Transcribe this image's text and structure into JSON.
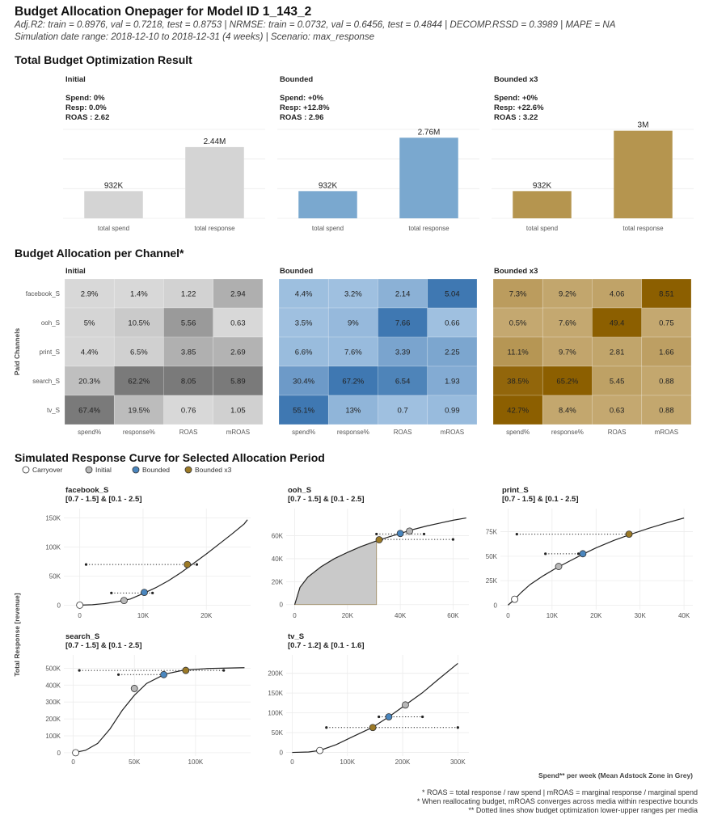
{
  "header": {
    "title": "Budget Allocation Onepager for Model ID 1_143_2",
    "subtitle_lines": [
      "Adj.R2: train = 0.8976, val = 0.7218, test = 0.8753 | NRMSE: train = 0.0732, val = 0.6456, test = 0.4844 | DECOMP.RSSD = 0.3989 | MAPE = NA",
      "Simulation date range: 2018-12-10 to 2018-12-31 (4 weeks) | Scenario: max_response"
    ]
  },
  "colors": {
    "initial": "#d4d4d4",
    "bounded": "#7aa8cf",
    "bounded_x3": "#b5954f",
    "carryover": "#ffffff"
  },
  "sections": {
    "total": "Total Budget Optimization Result",
    "allocation": "Budget Allocation per Channel*",
    "curves": "Simulated Response Curve for Selected Allocation Period"
  },
  "chart_data": [
    {
      "id": "total_budget",
      "type": "bar",
      "title": "Total Budget Optimization Result",
      "categories": [
        "total spend",
        "total response"
      ],
      "panels": [
        {
          "name": "Initial",
          "stats": [
            "Spend: 0%",
            "Resp: 0.0%",
            "ROAS : 2.62"
          ],
          "values": [
            932000,
            2440000
          ],
          "labels": [
            "932K",
            "2.44M"
          ],
          "color": "#d4d4d4"
        },
        {
          "name": "Bounded",
          "stats": [
            "Spend: +0%",
            "Resp: +12.8%",
            "ROAS : 2.96"
          ],
          "values": [
            932000,
            2760000
          ],
          "labels": [
            "932K",
            "2.76M"
          ],
          "color": "#7aa8cf"
        },
        {
          "name": "Bounded x3",
          "stats": [
            "Spend: +0%",
            "Resp: +22.6%",
            "ROAS : 3.22"
          ],
          "values": [
            932000,
            3000000
          ],
          "labels": [
            "932K",
            "3M"
          ],
          "color": "#b5954f"
        }
      ],
      "ylim": [
        0,
        3600000
      ]
    },
    {
      "id": "allocation",
      "type": "heatmap",
      "title": "Budget Allocation per Channel*",
      "ylabel": "Paid Channels",
      "rows": [
        "facebook_S",
        "ooh_S",
        "print_S",
        "search_S",
        "tv_S"
      ],
      "columns": [
        "spend%",
        "response%",
        "ROAS",
        "mROAS"
      ],
      "panels": [
        {
          "name": "Initial",
          "scale": [
            "#d8d8d8",
            "#7a7a7a"
          ],
          "cells": [
            [
              "2.9%",
              "1.4%",
              "1.22",
              "2.94"
            ],
            [
              "5%",
              "10.5%",
              "5.56",
              "0.63"
            ],
            [
              "4.4%",
              "6.5%",
              "3.85",
              "2.69"
            ],
            [
              "20.3%",
              "62.2%",
              "8.05",
              "5.89"
            ],
            [
              "67.4%",
              "19.5%",
              "0.76",
              "1.05"
            ]
          ],
          "values": [
            [
              2.9,
              1.4,
              1.22,
              2.94
            ],
            [
              5,
              10.5,
              5.56,
              0.63
            ],
            [
              4.4,
              6.5,
              3.85,
              2.69
            ],
            [
              20.3,
              62.2,
              8.05,
              5.89
            ],
            [
              67.4,
              19.5,
              0.76,
              1.05
            ]
          ]
        },
        {
          "name": "Bounded",
          "scale": [
            "#9fc0e0",
            "#3f78b2"
          ],
          "cells": [
            [
              "4.4%",
              "3.2%",
              "2.14",
              "5.04"
            ],
            [
              "3.5%",
              "9%",
              "7.66",
              "0.66"
            ],
            [
              "6.6%",
              "7.6%",
              "3.39",
              "2.25"
            ],
            [
              "30.4%",
              "67.2%",
              "6.54",
              "1.93"
            ],
            [
              "55.1%",
              "13%",
              "0.7",
              "0.99"
            ]
          ],
          "values": [
            [
              4.4,
              3.2,
              2.14,
              5.04
            ],
            [
              3.5,
              9,
              7.66,
              0.66
            ],
            [
              6.6,
              7.6,
              3.39,
              2.25
            ],
            [
              30.4,
              67.2,
              6.54,
              1.93
            ],
            [
              55.1,
              13,
              0.7,
              0.99
            ]
          ]
        },
        {
          "name": "Bounded x3",
          "scale": [
            "#c4a870",
            "#8c5f00"
          ],
          "cells": [
            [
              "7.3%",
              "9.2%",
              "4.06",
              "8.51"
            ],
            [
              "0.5%",
              "7.6%",
              "49.4",
              "0.75"
            ],
            [
              "11.1%",
              "9.7%",
              "2.81",
              "1.66"
            ],
            [
              "38.5%",
              "65.2%",
              "5.45",
              "0.88"
            ],
            [
              "42.7%",
              "8.4%",
              "0.63",
              "0.88"
            ]
          ],
          "values": [
            [
              7.3,
              9.2,
              4.06,
              8.51
            ],
            [
              0.5,
              7.6,
              49.4,
              0.75
            ],
            [
              11.1,
              9.7,
              2.81,
              1.66
            ],
            [
              38.5,
              65.2,
              5.45,
              0.88
            ],
            [
              42.7,
              8.4,
              0.63,
              0.88
            ]
          ]
        }
      ]
    },
    {
      "id": "response_curves",
      "type": "line",
      "title": "Simulated Response Curve for Selected Allocation Period",
      "ylabel": "Total Response [revenue]",
      "xlabel": "Spend** per week (Mean Adstock Zone in Grey)",
      "legend": [
        "Carryover",
        "Initial",
        "Bounded",
        "Bounded x3"
      ],
      "legend_position": "top-left",
      "panels": [
        {
          "name": "facebook_S",
          "range_label": "[0.7 - 1.5] & [0.1 - 2.5]",
          "xlim": [
            -2000,
            27000
          ],
          "ylim": [
            -5000,
            155000
          ],
          "xticks": [
            0,
            10000,
            20000
          ],
          "xticklabels": [
            "0",
            "10K",
            "20K"
          ],
          "yticks": [
            0,
            50000,
            100000,
            150000
          ],
          "yticklabels": [
            "0",
            "50K",
            "100K",
            "150K"
          ],
          "curve": [
            [
              0,
              0
            ],
            [
              2000,
              700
            ],
            [
              4000,
              2800
            ],
            [
              6000,
              6200
            ],
            [
              8000,
              10500
            ],
            [
              10000,
              20000
            ],
            [
              12000,
              30000
            ],
            [
              14000,
              42000
            ],
            [
              16000,
              56000
            ],
            [
              18000,
              72000
            ],
            [
              20000,
              88000
            ],
            [
              22000,
              105000
            ],
            [
              24000,
              122000
            ],
            [
              26000,
              140000
            ],
            [
              26500,
              147000
            ]
          ],
          "points": {
            "Carryover": [
              0,
              0
            ],
            "Initial": [
              7000,
              8000
            ],
            "Bounded": [
              10200,
              22000
            ],
            "Bounded x3": [
              17000,
              70000
            ]
          },
          "ranges": [
            {
              "from": [
                5000,
                21000
              ],
              "to": [
                11500,
                21000
              ]
            },
            {
              "from": [
                1000,
                70000
              ],
              "to": [
                18500,
                70000
              ]
            }
          ],
          "adstock": null
        },
        {
          "name": "ooh_S",
          "range_label": "[0.7 - 1.5] & [0.1 - 2.5]",
          "xlim": [
            -2000,
            66000
          ],
          "ylim": [
            -3000,
            78000
          ],
          "xticks": [
            0,
            20000,
            40000,
            60000
          ],
          "xticklabels": [
            "0",
            "20K",
            "40K",
            "60K"
          ],
          "yticks": [
            0,
            20000,
            40000,
            60000
          ],
          "yticklabels": [
            "0",
            "20K",
            "40K",
            "60K"
          ],
          "curve": [
            [
              0,
              0
            ],
            [
              2000,
              15000
            ],
            [
              5000,
              24000
            ],
            [
              10000,
              33000
            ],
            [
              15000,
              40000
            ],
            [
              20000,
              45500
            ],
            [
              25000,
              50500
            ],
            [
              31000,
              55500
            ],
            [
              35000,
              58500
            ],
            [
              40000,
              62000
            ],
            [
              45000,
              65500
            ],
            [
              50000,
              68500
            ],
            [
              55000,
              71000
            ],
            [
              60000,
              73500
            ],
            [
              65000,
              75500
            ]
          ],
          "points": {
            "Bounded x3": [
              32000,
              56500
            ],
            "Bounded": [
              40000,
              62000
            ],
            "Initial": [
              43500,
              64000
            ]
          },
          "ranges": [
            {
              "from": [
                33000,
                56800
              ],
              "to": [
                60000,
                56800
              ]
            },
            {
              "from": [
                31000,
                61500
              ],
              "to": [
                49000,
                61500
              ]
            }
          ],
          "adstock": [
            0,
            31000
          ]
        },
        {
          "name": "print_S",
          "range_label": "[0.7 - 1.5] & [0.1 - 2.5]",
          "xlim": [
            -1000,
            42000
          ],
          "ylim": [
            -3000,
            92000
          ],
          "xticks": [
            0,
            10000,
            20000,
            30000,
            40000
          ],
          "xticklabels": [
            "0",
            "10K",
            "20K",
            "30K",
            "40K"
          ],
          "yticks": [
            0,
            25000,
            50000,
            75000
          ],
          "yticklabels": [
            "0",
            "25K",
            "50K",
            "75K"
          ],
          "curve": [
            [
              0,
              0
            ],
            [
              1500,
              6000
            ],
            [
              3000,
              13000
            ],
            [
              5000,
              21000
            ],
            [
              8000,
              30000
            ],
            [
              11000,
              38000
            ],
            [
              14000,
              45000
            ],
            [
              17000,
              52000
            ],
            [
              20000,
              58500
            ],
            [
              24000,
              66000
            ],
            [
              28000,
              72500
            ],
            [
              32000,
              78500
            ],
            [
              36000,
              84000
            ],
            [
              40000,
              89000
            ]
          ],
          "points": {
            "Carryover": [
              1500,
              6000
            ],
            "Initial": [
              11500,
              39500
            ],
            "Bounded": [
              17000,
              52500
            ],
            "Bounded x3": [
              27500,
              72500
            ]
          },
          "ranges": [
            {
              "from": [
                8500,
                52500
              ],
              "to": [
                16000,
                52500
              ]
            },
            {
              "from": [
                2000,
                72500
              ],
              "to": [
                27000,
                72500
              ]
            }
          ],
          "adstock": null
        },
        {
          "name": "search_S",
          "range_label": "[0.7 - 1.5] & [0.1 - 2.5]",
          "xlim": [
            -5000,
            145000
          ],
          "ylim": [
            -10000,
            540000
          ],
          "xticks": [
            0,
            50000,
            100000
          ],
          "xticklabels": [
            "0",
            "50K",
            "100K"
          ],
          "yticks": [
            0,
            100000,
            200000,
            300000,
            400000,
            500000
          ],
          "yticklabels": [
            "0",
            "100K",
            "200K",
            "300K",
            "400K",
            "500K"
          ],
          "curve": [
            [
              0,
              0
            ],
            [
              10000,
              14000
            ],
            [
              20000,
              55000
            ],
            [
              30000,
              140000
            ],
            [
              40000,
              250000
            ],
            [
              50000,
              340000
            ],
            [
              60000,
              410000
            ],
            [
              75000,
              465000
            ],
            [
              90000,
              488000
            ],
            [
              110000,
              498000
            ],
            [
              140000,
              503000
            ]
          ],
          "points": {
            "Carryover": [
              2000,
              0
            ],
            "Initial": [
              50000,
              380000
            ],
            "Bounded": [
              74000,
              462000
            ],
            "Bounded x3": [
              92000,
              487000
            ]
          },
          "ranges": [
            {
              "from": [
                37000,
                462000
              ],
              "to": [
                75000,
                462000
              ]
            },
            {
              "from": [
                5000,
                487000
              ],
              "to": [
                123000,
                487000
              ]
            }
          ],
          "adstock": null
        },
        {
          "name": "tv_S",
          "range_label": "[0.7 - 1.2] & [0.1 - 1.6]",
          "xlim": [
            -5000,
            320000
          ],
          "ylim": [
            -5000,
            230000
          ],
          "xticks": [
            0,
            100000,
            200000,
            300000
          ],
          "xticklabels": [
            "0",
            "100K",
            "200K",
            "300K"
          ],
          "yticks": [
            0,
            50000,
            100000,
            150000,
            200000
          ],
          "yticklabels": [
            "0",
            "50K",
            "100K",
            "150K",
            "200K"
          ],
          "curve": [
            [
              0,
              0
            ],
            [
              30000,
              1200
            ],
            [
              50000,
              5000
            ],
            [
              80000,
              20000
            ],
            [
              110000,
              40000
            ],
            [
              145000,
              63000
            ],
            [
              175000,
              90000
            ],
            [
              205000,
              120000
            ],
            [
              235000,
              150000
            ],
            [
              265000,
              185000
            ],
            [
              300000,
              225000
            ]
          ],
          "points": {
            "Carryover": [
              50000,
              5000
            ],
            "Initial": [
              205000,
              120000
            ],
            "Bounded": [
              175000,
              90000
            ],
            "Bounded x3": [
              146000,
              63000
            ]
          },
          "ranges": [
            {
              "from": [
                62000,
                63000
              ],
              "to": [
                300000,
                63000
              ]
            },
            {
              "from": [
                157000,
                90000
              ],
              "to": [
                236000,
                90000
              ]
            }
          ],
          "adstock": null
        }
      ]
    }
  ],
  "footnotes": [
    "* ROAS = total response / raw spend | mROAS = marginal response / marginal spend",
    "* When reallocating budget, mROAS converges across media within respective bounds",
    "** Dotted lines show budget optimization lower-upper ranges per media"
  ]
}
